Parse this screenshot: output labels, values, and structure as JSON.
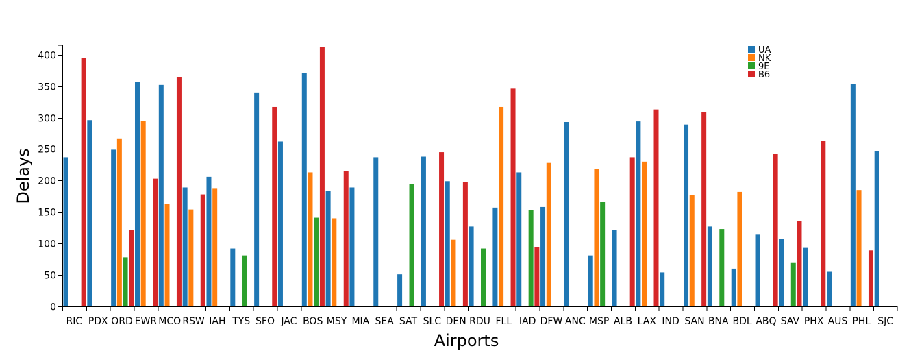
{
  "chart_data": {
    "type": "bar",
    "xlabel": "Airports",
    "ylabel": "Delays",
    "ylim": [
      0,
      415
    ],
    "yticks": [
      0,
      50,
      100,
      150,
      200,
      250,
      300,
      350,
      400
    ],
    "grid": false,
    "legend_position": "top-right",
    "categories": [
      "RIC",
      "PDX",
      "ORD",
      "EWR",
      "MCO",
      "RSW",
      "IAH",
      "TYS",
      "SFO",
      "JAC",
      "BOS",
      "MSY",
      "MIA",
      "SEA",
      "SAT",
      "SLC",
      "DEN",
      "RDU",
      "FLL",
      "IAD",
      "DFW",
      "ANC",
      "MSP",
      "ALB",
      "LAX",
      "IND",
      "SAN",
      "BNA",
      "BDL",
      "ABQ",
      "SAV",
      "PHX",
      "AUS",
      "PHL",
      "SJC"
    ],
    "series": [
      {
        "name": "UA",
        "color": "#1f77b4",
        "values": [
          237,
          296,
          249,
          357,
          352,
          189,
          206,
          92,
          340,
          262,
          371,
          183,
          189,
          237,
          51,
          238,
          199,
          127,
          157,
          213,
          158,
          293,
          81,
          122,
          294,
          54,
          289,
          127,
          60,
          114,
          107,
          93,
          55,
          353,
          247
        ]
      },
      {
        "name": "NK",
        "color": "#ff7f0e",
        "values": [
          null,
          null,
          266,
          295,
          163,
          154,
          188,
          null,
          null,
          null,
          213,
          140,
          null,
          null,
          null,
          null,
          106,
          null,
          317,
          null,
          228,
          null,
          218,
          null,
          230,
          null,
          177,
          null,
          182,
          null,
          null,
          null,
          null,
          185,
          null
        ]
      },
      {
        "name": "9E",
        "color": "#2ca02c",
        "values": [
          null,
          null,
          78,
          null,
          null,
          null,
          null,
          81,
          null,
          null,
          141,
          null,
          null,
          null,
          194,
          null,
          null,
          92,
          null,
          153,
          null,
          null,
          166,
          null,
          null,
          null,
          null,
          123,
          null,
          null,
          70,
          null,
          null,
          null,
          null
        ]
      },
      {
        "name": "B6",
        "color": "#d62728",
        "values": [
          395,
          null,
          121,
          203,
          364,
          178,
          null,
          null,
          317,
          null,
          412,
          215,
          null,
          null,
          null,
          245,
          198,
          null,
          346,
          94,
          null,
          null,
          null,
          237,
          313,
          null,
          309,
          null,
          null,
          242,
          136,
          263,
          null,
          89,
          null
        ]
      }
    ]
  }
}
